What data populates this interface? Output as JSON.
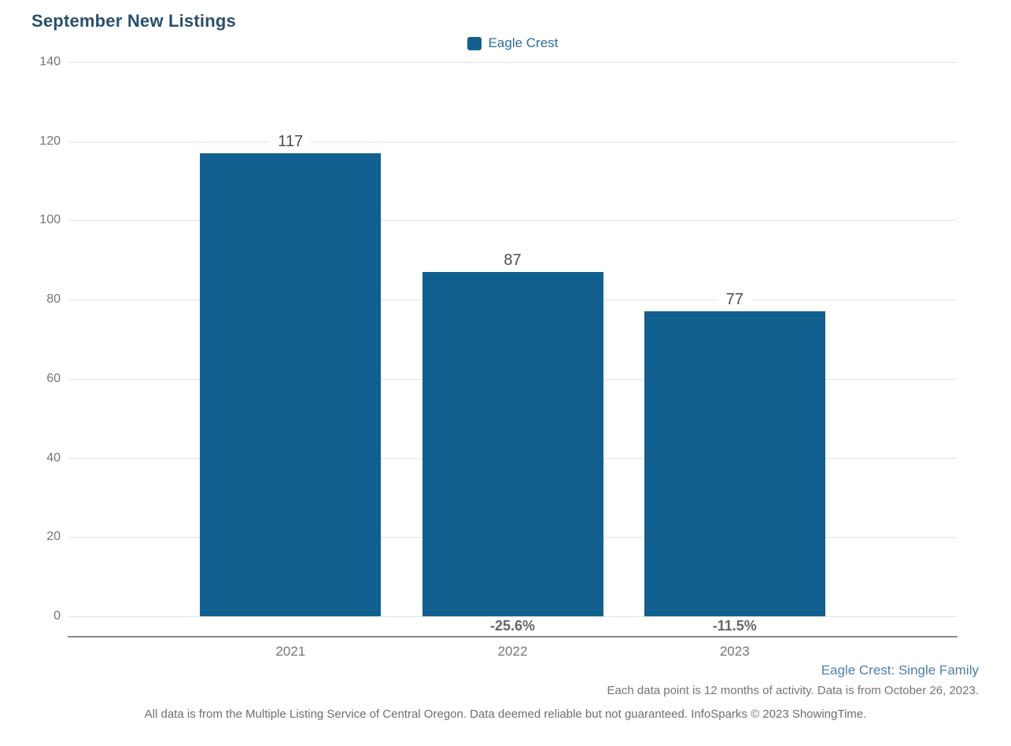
{
  "title": "September New Listings",
  "legend": {
    "label": "Eagle Crest",
    "swatch_color": "#11608f"
  },
  "chart_data": {
    "type": "bar",
    "title": "September New Listings",
    "series_name": "Eagle Crest",
    "categories": [
      "2021",
      "2022",
      "2023"
    ],
    "values": [
      117,
      87,
      77
    ],
    "value_labels": [
      "117",
      "87",
      "77"
    ],
    "pct_change_labels": [
      "",
      "-25.6%",
      "-11.5%"
    ],
    "xlabel": "",
    "ylabel": "",
    "ylim": [
      0,
      140
    ],
    "yticks": [
      0,
      20,
      40,
      60,
      80,
      100,
      120,
      140
    ],
    "grid": true,
    "legend_position": "top-center",
    "bar_color": "#11608f"
  },
  "footnotes": {
    "segment_label": "Eagle Crest: Single Family",
    "data_note": "Each data point is 12 months of activity. Data is from October 26, 2023.",
    "disclaimer": "All data is from the Multiple Listing Service of Central Oregon. Data deemed reliable but not guaranteed. InfoSparks © 2023 ShowingTime."
  },
  "colors": {
    "title": "#2a4e6e",
    "bar": "#11608f",
    "legend_text": "#2e6d9d",
    "gridline": "#e3e3e3",
    "axis_line": "#8a8a8a",
    "tick_text": "#757575",
    "value_text": "#4d4d4d",
    "pct_text": "#666666",
    "segment_text": "#4d7fae"
  }
}
